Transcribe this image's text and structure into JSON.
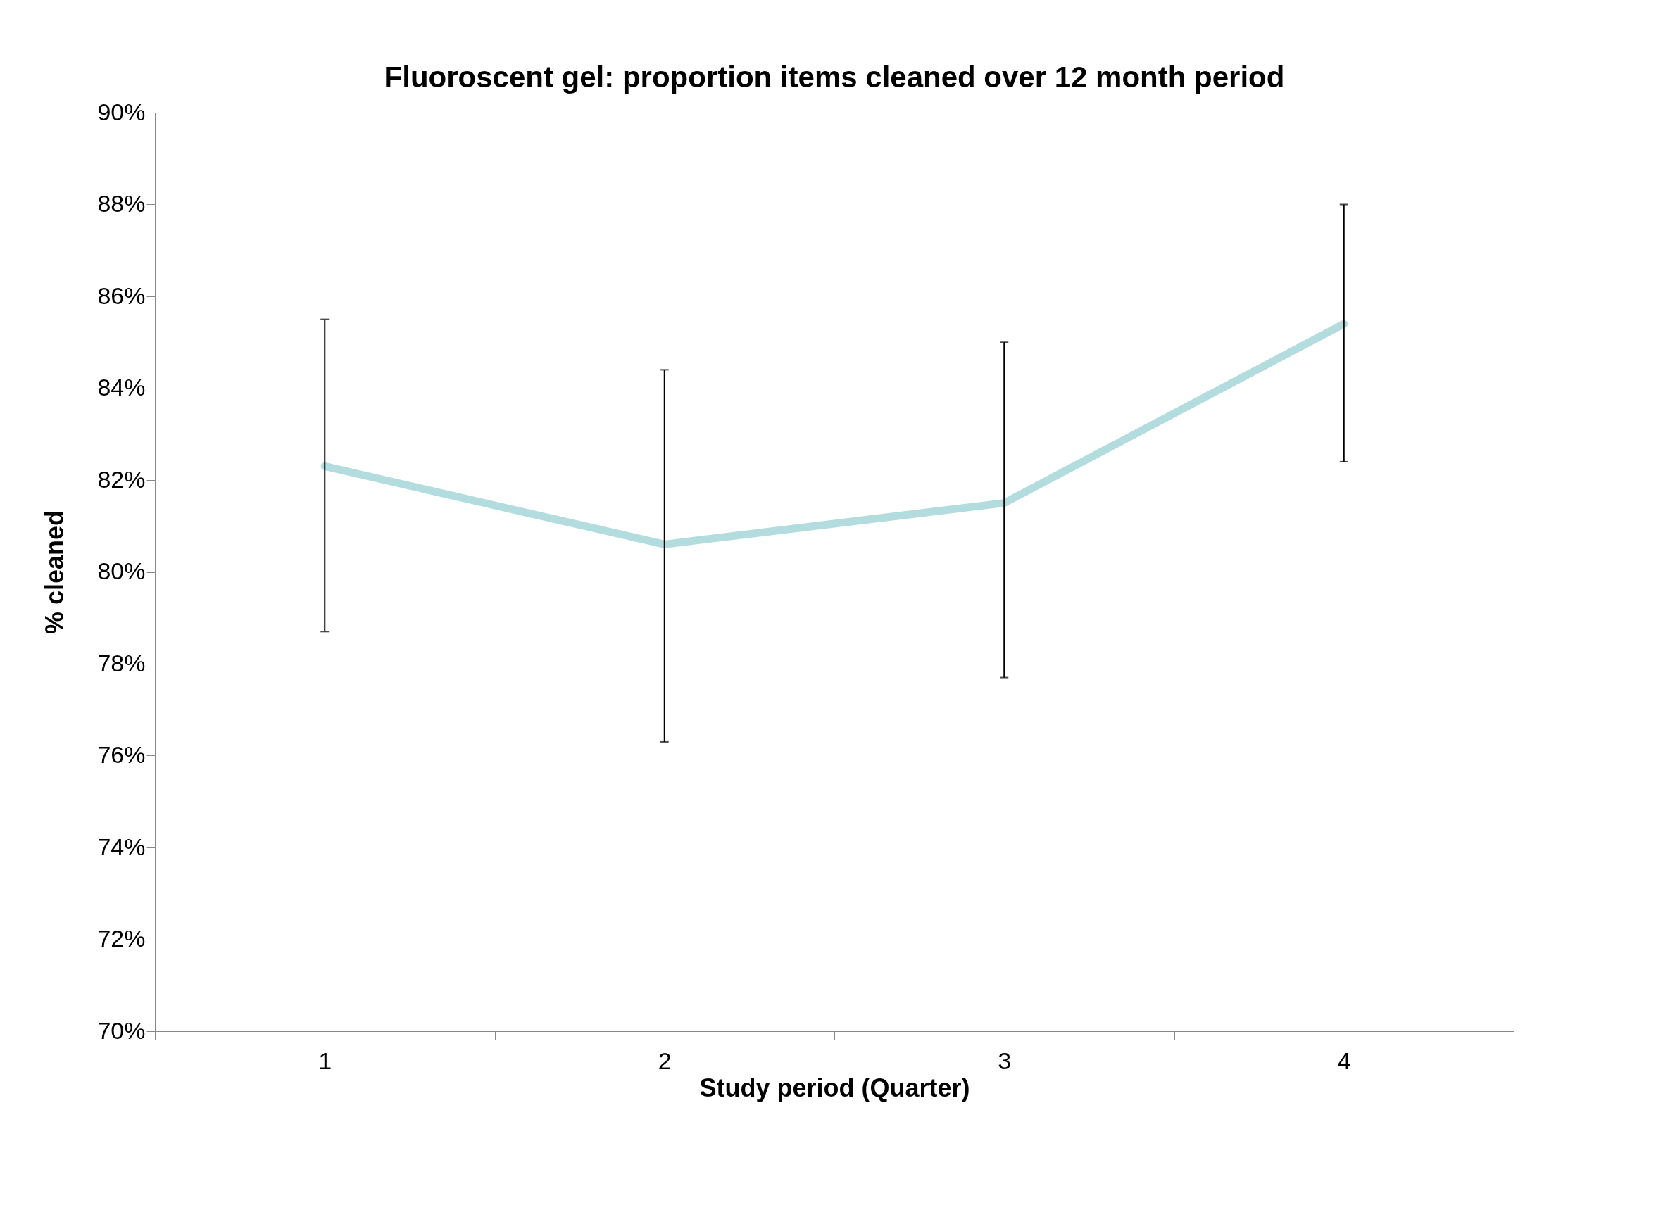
{
  "chart_data": {
    "type": "line",
    "title": "Fluoroscent gel: proportion items cleaned over 12 month period",
    "xlabel": "Study period (Quarter)",
    "ylabel": "% cleaned",
    "categories": [
      "1",
      "2",
      "3",
      "4"
    ],
    "series": [
      {
        "color": "#b3dcdf",
        "values": [
          82.3,
          80.6,
          81.5,
          85.4
        ],
        "errors": [
          [
            78.7,
            85.5
          ],
          [
            76.3,
            84.4
          ],
          [
            77.7,
            85.0
          ],
          [
            82.4,
            88.0
          ]
        ]
      }
    ],
    "ylim": [
      70,
      90
    ],
    "yticks": [
      {
        "value": 70,
        "label": "70%"
      },
      {
        "value": 72,
        "label": "72%"
      },
      {
        "value": 74,
        "label": "74%"
      },
      {
        "value": 76,
        "label": "76%"
      },
      {
        "value": 78,
        "label": "78%"
      },
      {
        "value": 80,
        "label": "80%"
      },
      {
        "value": 82,
        "label": "82%"
      },
      {
        "value": 84,
        "label": "84%"
      },
      {
        "value": 86,
        "label": "86%"
      },
      {
        "value": 88,
        "label": "88%"
      },
      {
        "value": 90,
        "label": "90%"
      }
    ],
    "grid": false,
    "marker": "none",
    "line_style": "solid"
  }
}
